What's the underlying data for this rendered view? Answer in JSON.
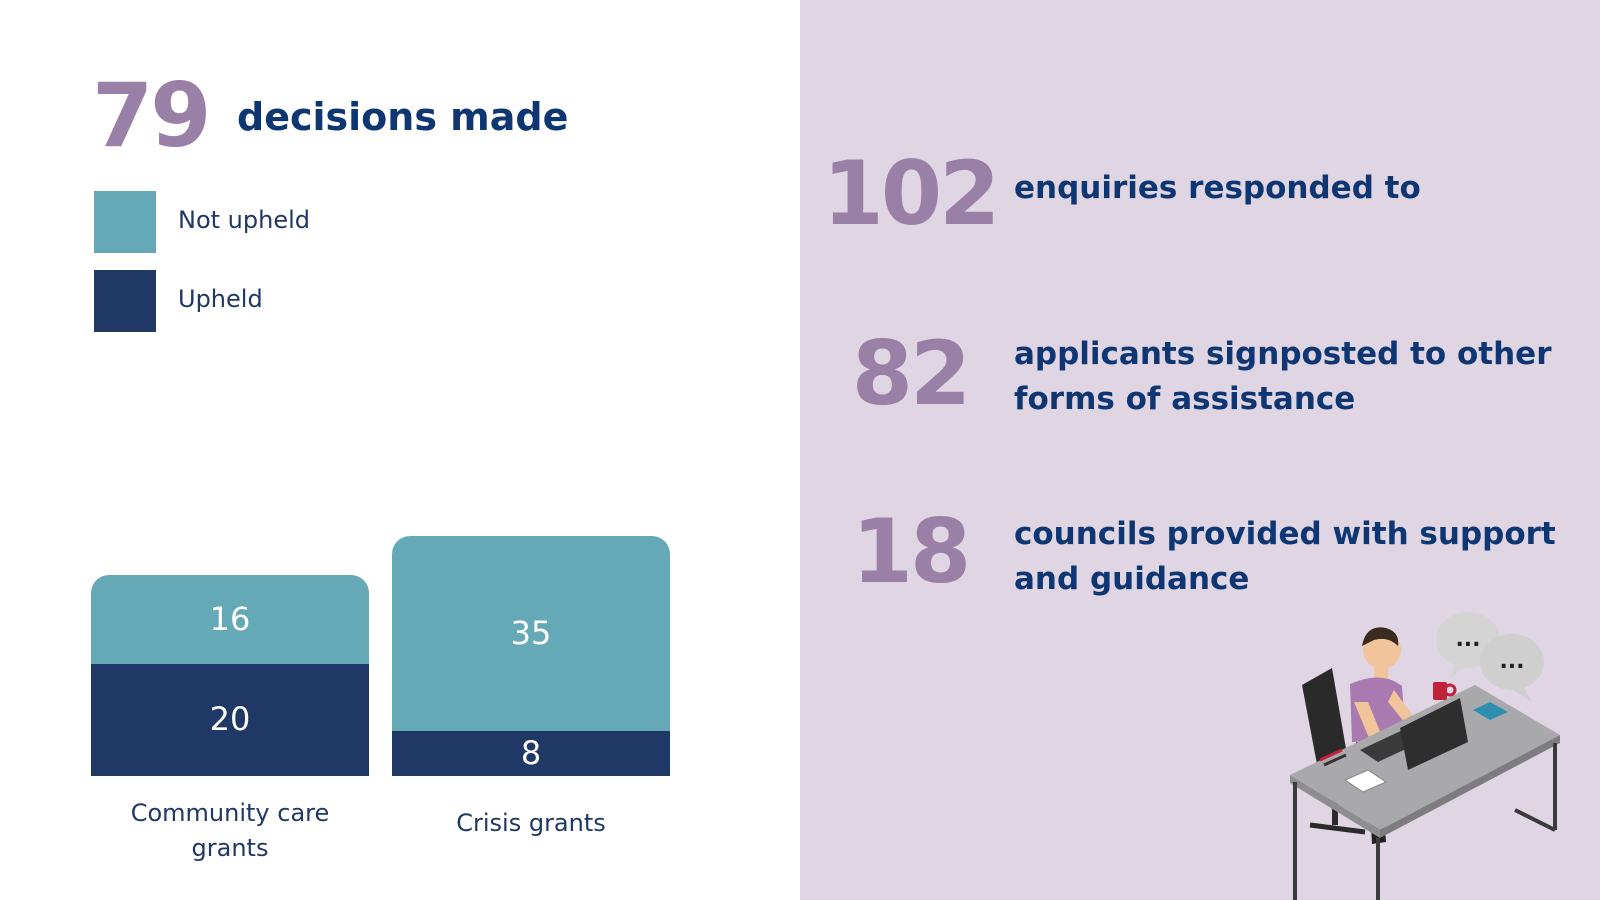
{
  "summary": {
    "number": "79",
    "text": "decisions made"
  },
  "legend": [
    {
      "label": "Not upheld",
      "color": "#66a9b6"
    },
    {
      "label": "Upheld",
      "color": "#1f3866"
    }
  ],
  "chart_data": {
    "type": "bar",
    "stacked": true,
    "categories": [
      "Community care grants",
      "Crisis grants"
    ],
    "series": [
      {
        "name": "Upheld",
        "values": [
          20,
          8
        ],
        "color": "#1f3866"
      },
      {
        "name": "Not upheld",
        "values": [
          16,
          35
        ],
        "color": "#66a9b6"
      }
    ],
    "category_labels": [
      [
        "Community care",
        "grants"
      ],
      [
        "Crisis grants"
      ]
    ],
    "grid": false,
    "legend_position": "top-left"
  },
  "stats": [
    {
      "number": "102",
      "text_lines": [
        "enquiries responded to"
      ]
    },
    {
      "number": "82",
      "text_lines": [
        "applicants signposted to other",
        "forms of assistance"
      ]
    },
    {
      "number": "18",
      "text_lines": [
        "councils provided with support",
        "and guidance"
      ]
    }
  ],
  "illustration": {
    "icon": "person-at-laptop-desk-icon",
    "speech_bubbles": [
      "...",
      "..."
    ],
    "colors": {
      "shirt": "#a87ab0",
      "desk": "#a9a9ab",
      "chair": "#2a2a2a",
      "bubble": "#d4d4d4",
      "laptop": "#3a3a3a",
      "mug": "#c0223a"
    }
  }
}
